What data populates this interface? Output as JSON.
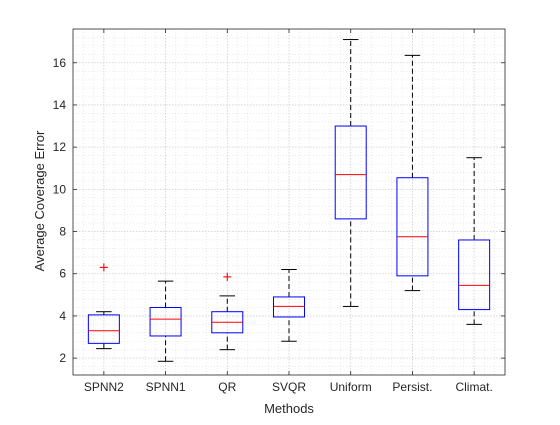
{
  "chart_data": {
    "type": "boxplot",
    "title": "",
    "xlabel": "Methods",
    "ylabel": "Average Coverage Error",
    "ylim": [
      1.2,
      17.6
    ],
    "yticks": [
      2,
      4,
      6,
      8,
      10,
      12,
      14,
      16
    ],
    "grid": true,
    "minor_grid": true,
    "colors": {
      "box": "#0000ff",
      "median": "#ff0000",
      "whisker": "#000000",
      "outlier": "#ff0000",
      "axis": "#262626",
      "grid": "#dcdcdc"
    },
    "categories": [
      "SPNN2",
      "SPNN1",
      "QR",
      "SVQR",
      "Uniform",
      "Persist.",
      "Climat."
    ],
    "boxes": [
      {
        "name": "SPNN2",
        "min": 2.45,
        "q1": 2.7,
        "median": 3.3,
        "q3": 4.05,
        "max": 4.2,
        "outliers": [
          6.3
        ]
      },
      {
        "name": "SPNN1",
        "min": 1.85,
        "q1": 3.05,
        "median": 3.85,
        "q3": 4.4,
        "max": 5.65,
        "outliers": []
      },
      {
        "name": "QR",
        "min": 2.4,
        "q1": 3.2,
        "median": 3.7,
        "q3": 4.2,
        "max": 4.95,
        "outliers": [
          5.85
        ]
      },
      {
        "name": "SVQR",
        "min": 2.8,
        "q1": 3.95,
        "median": 4.45,
        "q3": 4.9,
        "max": 6.2,
        "outliers": []
      },
      {
        "name": "Uniform",
        "min": 4.45,
        "q1": 8.6,
        "median": 10.7,
        "q3": 13.0,
        "max": 17.1,
        "outliers": []
      },
      {
        "name": "Persist.",
        "min": 5.2,
        "q1": 5.9,
        "median": 7.75,
        "q3": 10.55,
        "max": 16.35,
        "outliers": []
      },
      {
        "name": "Climat.",
        "min": 3.6,
        "q1": 4.3,
        "median": 5.45,
        "q3": 7.6,
        "max": 11.5,
        "outliers": []
      }
    ]
  }
}
